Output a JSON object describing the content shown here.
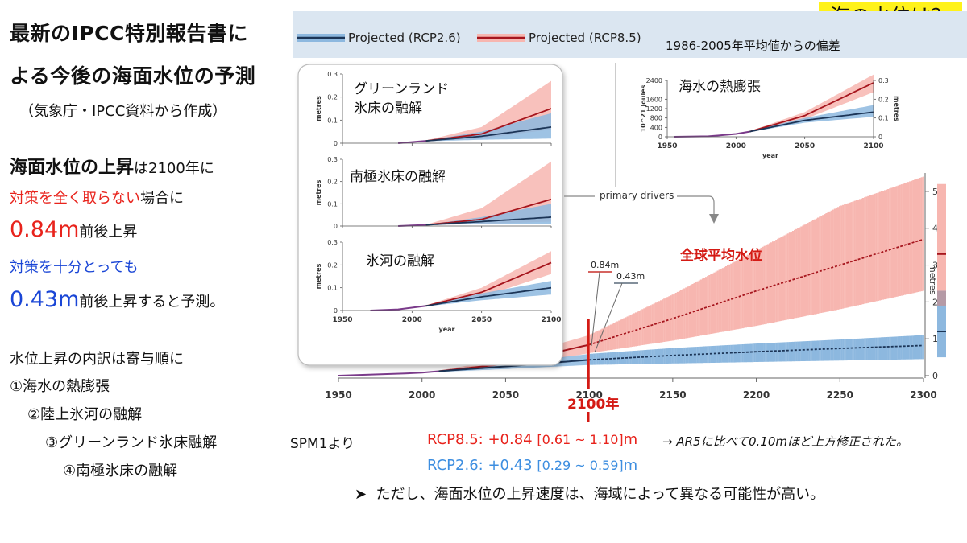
{
  "corner_tag": "海の水位は？",
  "left_panel": {
    "title_lines": [
      "最新のIPCC特別報告書に",
      "よる今後の海面水位の予測"
    ],
    "source": "（気象庁・IPCC資料から作成）",
    "rise_bold": "海面水位の上昇",
    "rise_rest": "は2100年に",
    "no_action": "対策を全く取らない",
    "no_action_suffix": "場合に",
    "high_value": "0.84m",
    "high_suffix": "前後上昇",
    "with_action": "対策を十分とっても",
    "low_value": "0.43m",
    "low_suffix": "前後上昇すると予測。",
    "breakdown_title": "水位上昇の内訳は寄与順に",
    "breakdown_items": [
      "①海水の熱膨張",
      "②陸上氷河の融解",
      "③グリーンランド氷床融解",
      "④南極氷床の融解"
    ]
  },
  "legend": {
    "rcp26": "Projected (RCP2.6)",
    "rcp85": "Projected (RCP8.5)",
    "baseline": "1986-2005年平均値からの偏差"
  },
  "colors": {
    "rcp85_line": "#a6151d",
    "rcp85_band": "#f7b6b0",
    "rcp26_line": "#1c3557",
    "rcp26_band": "#8db8df",
    "highlight_red": "#e8231c",
    "highlight_blue": "#3d8ee0",
    "label_red": "#d41a14"
  },
  "main_chart": {
    "label": "全球平均水位",
    "marker_2100": "2100年",
    "callout_high": "0.84m",
    "callout_low": "0.43m",
    "primary_drivers": "primary drivers",
    "right_axis_label": "metres"
  },
  "inset_labels": {
    "greenland_line1": "グリーンランド",
    "greenland_line2": "氷床の融解",
    "antarctic": "南極氷床の融解",
    "glacier": "氷河の融解",
    "thermal": "海水の熱膨張"
  },
  "footer": {
    "spm": "SPM1より",
    "rcp85_text": "RCP8.5: +0.84 ",
    "rcp85_range": "[0.61 ~ 1.10]",
    "rcp85_unit": "m",
    "ar5_note": "→ AR5に比べて0.10mほど上方修正された。",
    "rcp26_text": "RCP2.6: +0.43 ",
    "rcp26_range": "[0.29 ~ 0.59]",
    "rcp26_unit": "m",
    "caveat": "ただし、海面水位の上昇速度は、海域によって異なる可能性が高い。"
  },
  "chart_data": [
    {
      "type": "line",
      "name": "global-mean-sea-level",
      "xlabel": "",
      "ylabel": "metres",
      "xlim": [
        1950,
        2300
      ],
      "ylim": [
        0,
        5.5
      ],
      "x_ticks": [
        1950,
        2000,
        2050,
        2100,
        2150,
        2200,
        2250,
        2300
      ],
      "y_ticks": [
        0,
        1,
        2,
        3,
        4,
        5
      ],
      "observed": {
        "x": [
          1950,
          1970,
          1990,
          2000,
          2010
        ],
        "y": [
          0.0,
          0.03,
          0.06,
          0.08,
          0.12
        ]
      },
      "series": [
        {
          "name": "Projected (RCP8.5)",
          "x": [
            2010,
            2050,
            2100,
            2150,
            2200,
            2250,
            2300
          ],
          "median": [
            0.12,
            0.32,
            0.84,
            1.55,
            2.3,
            3.0,
            3.7
          ],
          "low": [
            0.1,
            0.22,
            0.61,
            0.95,
            1.35,
            1.8,
            2.3
          ],
          "high": [
            0.14,
            0.45,
            1.1,
            2.2,
            3.4,
            4.6,
            5.4
          ]
        },
        {
          "name": "Projected (RCP2.6)",
          "x": [
            2010,
            2050,
            2100,
            2150,
            2200,
            2250,
            2300
          ],
          "median": [
            0.12,
            0.25,
            0.43,
            0.55,
            0.65,
            0.74,
            0.82
          ],
          "low": [
            0.1,
            0.18,
            0.29,
            0.33,
            0.37,
            0.41,
            0.45
          ],
          "high": [
            0.14,
            0.32,
            0.59,
            0.75,
            0.87,
            0.98,
            1.1
          ]
        }
      ],
      "side_bars": [
        {
          "name": "Projected (RCP8.5)",
          "low": 1.9,
          "high": 5.2,
          "median": 3.3
        },
        {
          "name": "Projected (RCP2.6)",
          "low": 0.5,
          "high": 2.3,
          "median": 1.2
        }
      ]
    },
    {
      "type": "line",
      "name": "greenland",
      "xlabel": "year",
      "ylabel": "metres",
      "xlim": [
        1950,
        2100
      ],
      "ylim": [
        0,
        0.3
      ],
      "x_ticks": [
        1950,
        2000,
        2050,
        2100
      ],
      "y_ticks": [
        0,
        0.1,
        0.2,
        0.3
      ],
      "observed": {
        "x": [
          1990,
          2010
        ],
        "y": [
          0.0,
          0.01
        ]
      },
      "series": [
        {
          "name": "Projected (RCP8.5)",
          "x": [
            2010,
            2050,
            2100
          ],
          "median": [
            0.01,
            0.04,
            0.15
          ],
          "low": [
            0.008,
            0.02,
            0.06
          ],
          "high": [
            0.012,
            0.07,
            0.27
          ]
        },
        {
          "name": "Projected (RCP2.6)",
          "x": [
            2010,
            2050,
            2100
          ],
          "median": [
            0.01,
            0.03,
            0.07
          ],
          "low": [
            0.008,
            0.015,
            0.02
          ],
          "high": [
            0.012,
            0.05,
            0.13
          ]
        }
      ]
    },
    {
      "type": "line",
      "name": "antarctic",
      "xlabel": "year",
      "ylabel": "metres",
      "xlim": [
        1950,
        2100
      ],
      "ylim": [
        0,
        0.3
      ],
      "x_ticks": [
        1950,
        2000,
        2050,
        2100
      ],
      "y_ticks": [
        0,
        0.1,
        0.2,
        0.3
      ],
      "observed": {
        "x": [
          1990,
          2010
        ],
        "y": [
          0.0,
          0.005
        ]
      },
      "series": [
        {
          "name": "Projected (RCP8.5)",
          "x": [
            2010,
            2050,
            2100
          ],
          "median": [
            0.005,
            0.03,
            0.12
          ],
          "low": [
            0.004,
            0.01,
            0.02
          ],
          "high": [
            0.006,
            0.08,
            0.29
          ]
        },
        {
          "name": "Projected (RCP2.6)",
          "x": [
            2010,
            2050,
            2100
          ],
          "median": [
            0.005,
            0.02,
            0.04
          ],
          "low": [
            0.004,
            0.01,
            0.01
          ],
          "high": [
            0.006,
            0.04,
            0.1
          ]
        }
      ]
    },
    {
      "type": "line",
      "name": "glaciers",
      "xlabel": "year",
      "ylabel": "metres",
      "xlim": [
        1950,
        2100
      ],
      "ylim": [
        0,
        0.3
      ],
      "x_ticks": [
        1950,
        2000,
        2050,
        2100
      ],
      "y_ticks": [
        0,
        0.1,
        0.2,
        0.3
      ],
      "observed": {
        "x": [
          1970,
          1990,
          2010
        ],
        "y": [
          0.0,
          0.005,
          0.02
        ]
      },
      "series": [
        {
          "name": "Projected (RCP8.5)",
          "x": [
            2010,
            2050,
            2100
          ],
          "median": [
            0.02,
            0.08,
            0.21
          ],
          "low": [
            0.018,
            0.06,
            0.16
          ],
          "high": [
            0.022,
            0.1,
            0.26
          ]
        },
        {
          "name": "Projected (RCP2.6)",
          "x": [
            2010,
            2050,
            2100
          ],
          "median": [
            0.02,
            0.06,
            0.1
          ],
          "low": [
            0.018,
            0.045,
            0.07
          ],
          "high": [
            0.022,
            0.075,
            0.13
          ]
        }
      ]
    },
    {
      "type": "line",
      "name": "thermal-expansion",
      "xlabel": "year",
      "ylabel": "10^21 Joules",
      "ylabel_right": "metres",
      "xlim": [
        1950,
        2100
      ],
      "ylim": [
        0,
        2400
      ],
      "x_ticks": [
        1950,
        2000,
        2050,
        2100
      ],
      "y_ticks": [
        0,
        400,
        800,
        1200,
        1600,
        2400
      ],
      "y_tick_labels": [
        "0",
        "400",
        "800",
        "1200",
        "1600",
        "2400"
      ],
      "y_right_ticks": [
        0,
        0.1,
        0.2,
        0.3
      ],
      "observed": {
        "x": [
          1955,
          1980,
          2000,
          2010
        ],
        "y": [
          0,
          20,
          120,
          220
        ]
      },
      "series": [
        {
          "name": "Projected (RCP8.5)",
          "x": [
            2010,
            2050,
            2100
          ],
          "median": [
            220,
            900,
            2300
          ],
          "low": [
            200,
            750,
            1900
          ],
          "high": [
            240,
            1050,
            2650
          ]
        },
        {
          "name": "Projected (RCP2.6)",
          "x": [
            2010,
            2050,
            2100
          ],
          "median": [
            220,
            700,
            1050
          ],
          "low": [
            200,
            600,
            850
          ],
          "high": [
            240,
            800,
            1350
          ]
        }
      ]
    }
  ]
}
